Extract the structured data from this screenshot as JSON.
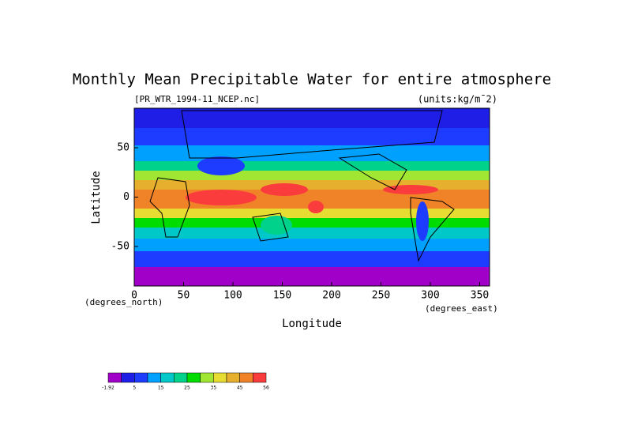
{
  "title": "Monthly Mean Precipitable Water for entire atmosphere",
  "subtitle": "[PR_WTR_1994-11_NCEP.nc]",
  "units": "(units:kg/m¯2)",
  "y_axis": {
    "label": "Latitude",
    "units": "(degrees_north)",
    "lim": [
      -90,
      90
    ],
    "ticks": [
      -50,
      0,
      50
    ]
  },
  "x_axis": {
    "label": "Longitude",
    "units": "(degrees_east)",
    "lim": [
      0,
      360
    ],
    "ticks": [
      0,
      50,
      100,
      150,
      200,
      250,
      300,
      350
    ]
  },
  "colorbar": {
    "colors": [
      "#a000c8",
      "#1e1ee6",
      "#1e3cff",
      "#00a0ff",
      "#00c8c8",
      "#00d28c",
      "#00dc00",
      "#a0e632",
      "#e6dc32",
      "#e6af2d",
      "#f08228",
      "#fa3c3c"
    ],
    "labels": [
      -1.92,
      5,
      15,
      25,
      35,
      45,
      56
    ]
  }
}
